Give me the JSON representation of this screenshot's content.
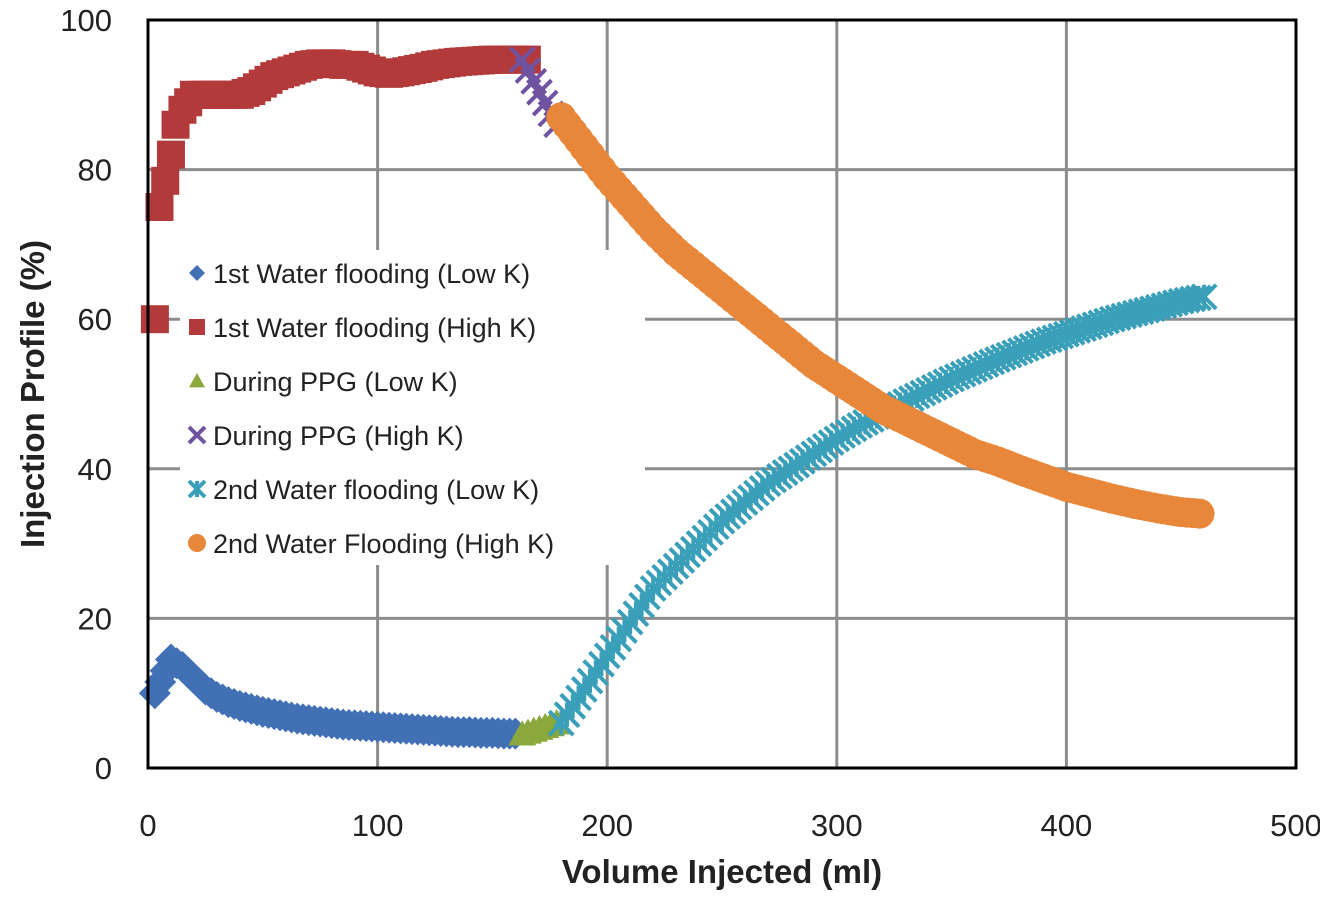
{
  "chart_data": {
    "type": "scatter",
    "title": "",
    "xlabel": "Volume Injected (ml)",
    "ylabel": "Injection Profile (%)",
    "xlim": [
      0,
      500
    ],
    "ylim": [
      0,
      100
    ],
    "xticks": [
      "0",
      "100",
      "200",
      "300",
      "400",
      "500"
    ],
    "yticks": [
      "0",
      "20",
      "40",
      "60",
      "80",
      "100"
    ],
    "grid": true,
    "legend_position": "left-center",
    "series": [
      {
        "name": "1st Water flooding (Low K)",
        "marker": "diamond",
        "color": "#4170b4",
        "x": [
          3,
          10,
          15,
          20,
          25,
          30,
          35,
          40,
          45,
          50,
          55,
          60,
          65,
          70,
          75,
          80,
          85,
          90,
          95,
          100,
          105,
          110,
          115,
          120,
          125,
          130,
          135,
          140,
          145,
          150,
          155,
          160
        ],
        "y": [
          10,
          14.5,
          13.5,
          12,
          10.5,
          9.5,
          8.8,
          8.3,
          7.9,
          7.5,
          7.2,
          6.9,
          6.6,
          6.4,
          6.2,
          6,
          5.8,
          5.7,
          5.6,
          5.5,
          5.4,
          5.3,
          5.2,
          5.1,
          5,
          4.9,
          4.8,
          4.8,
          4.7,
          4.7,
          4.6,
          4.6
        ]
      },
      {
        "name": "1st Water flooding (High K)",
        "marker": "square",
        "color": "#b33a3a",
        "x": [
          3,
          5,
          10,
          12,
          15,
          20,
          25,
          30,
          35,
          40,
          45,
          50,
          55,
          60,
          65,
          70,
          75,
          80,
          85,
          90,
          95,
          100,
          105,
          110,
          115,
          120,
          125,
          130,
          135,
          140,
          145,
          150,
          155,
          160,
          165
        ],
        "y": [
          60,
          75,
          82,
          86,
          88,
          90,
          90,
          90,
          90,
          90,
          90.5,
          91.5,
          92.5,
          93,
          93.5,
          94,
          94.2,
          94.2,
          94,
          94,
          93.5,
          93,
          92.8,
          93,
          93.3,
          93.6,
          94,
          94.2,
          94.4,
          94.5,
          94.6,
          94.7,
          94.7,
          94.7,
          94.7
        ]
      },
      {
        "name": "During PPG (Low K)",
        "marker": "triangle",
        "color": "#8aa83c",
        "x": [
          163,
          178
        ],
        "y": [
          4.5,
          6
        ]
      },
      {
        "name": "During PPG (High K)",
        "marker": "x",
        "color": "#6f52a0",
        "x": [
          163,
          178
        ],
        "y": [
          94.7,
          86
        ]
      },
      {
        "name": "2nd Water flooding (Low K)",
        "marker": "star",
        "color": "#3a9fb8",
        "x": [
          180,
          190,
          200,
          210,
          220,
          230,
          240,
          250,
          260,
          270,
          280,
          290,
          300,
          310,
          320,
          330,
          340,
          350,
          360,
          370,
          380,
          390,
          400,
          410,
          420,
          430,
          440,
          450,
          460
        ],
        "y": [
          6,
          10.5,
          15,
          19.5,
          24,
          27,
          30,
          33,
          35.5,
          38,
          40,
          42,
          44,
          45.8,
          47.4,
          49,
          50.5,
          52,
          53.3,
          54.6,
          55.8,
          57,
          58,
          59,
          60,
          60.8,
          61.6,
          62.4,
          63
        ]
      },
      {
        "name": "2nd Water Flooding (High K)",
        "marker": "circle",
        "color": "#e8873a",
        "x": [
          180,
          190,
          200,
          210,
          220,
          230,
          240,
          250,
          260,
          270,
          280,
          290,
          300,
          310,
          320,
          330,
          340,
          350,
          360,
          370,
          380,
          390,
          400,
          410,
          420,
          430,
          440,
          450,
          458
        ],
        "y": [
          87,
          83,
          79,
          75.5,
          72,
          69,
          66.5,
          64,
          61.5,
          59,
          56.5,
          54,
          52,
          50,
          48,
          46.5,
          45,
          43.5,
          42,
          41,
          39.8,
          38.7,
          37.6,
          36.8,
          36,
          35.3,
          34.7,
          34.2,
          34
        ]
      }
    ]
  }
}
